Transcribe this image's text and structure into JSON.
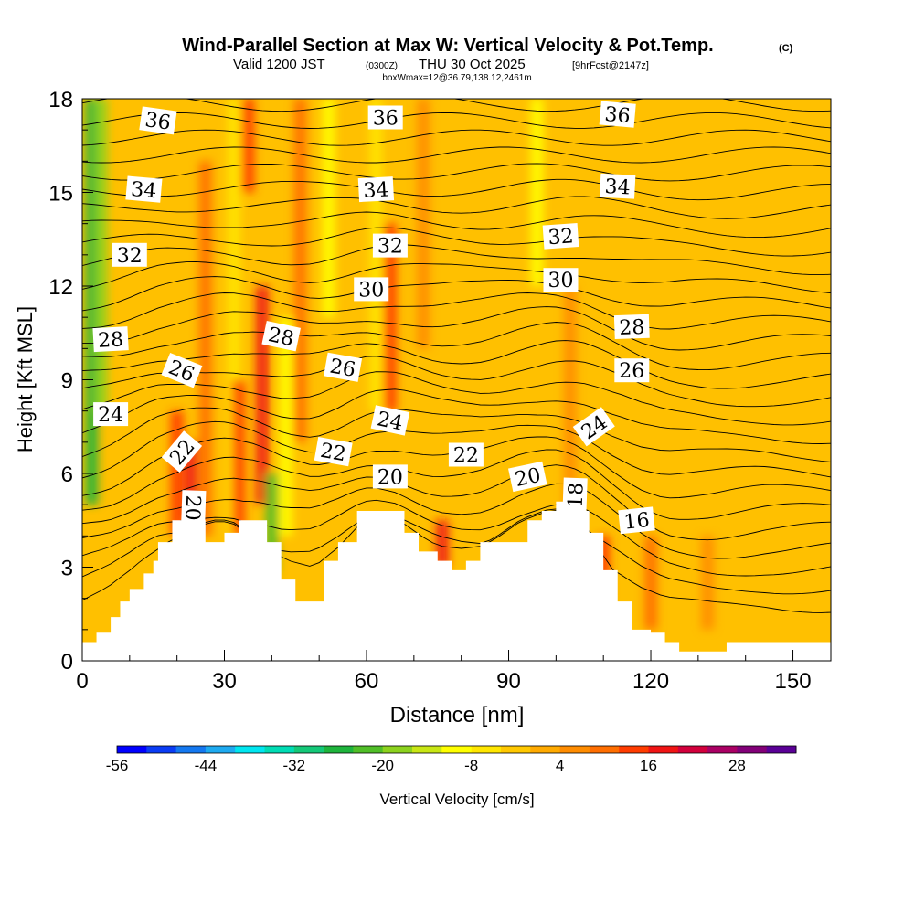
{
  "chart_data": {
    "type": "heatmap",
    "title": "Wind-Parallel Section at Max W: Vertical Velocity & Pot.Temp.",
    "title_mark": "(C)",
    "subtitle": {
      "valid_label": "Valid 1200 JST",
      "utc": "(0300Z)",
      "date": "THU 30 Oct 2025",
      "forecast": "[9hrFcst@2147z]"
    },
    "box_info": "boxWmax=12@36.79,138.12,2461m",
    "xlabel": "Distance [nm]",
    "ylabel": "Height [Kft MSL]",
    "xlim": [
      0,
      158
    ],
    "ylim": [
      0,
      18
    ],
    "x_ticks": [
      "0",
      "30",
      "60",
      "90",
      "120",
      "150"
    ],
    "y_ticks": [
      "0",
      "3",
      "6",
      "9",
      "12",
      "15",
      "18"
    ],
    "colorbar": {
      "label": "Vertical Velocity [cm/s]",
      "min": -56,
      "step": 4,
      "tick_labels": [
        "-56",
        "-44",
        "-32",
        "-20",
        "-8",
        "4",
        "16",
        "28"
      ],
      "colors": [
        "#0000ff",
        "#0a3cf5",
        "#1478f0",
        "#1eaaf0",
        "#00e6f0",
        "#00dcb4",
        "#14c878",
        "#1eb43c",
        "#50be28",
        "#8cd21e",
        "#c8e614",
        "#ffff00",
        "#ffe600",
        "#ffc800",
        "#ffaa00",
        "#ff8c00",
        "#ff6e00",
        "#ff3c00",
        "#f01414",
        "#d2003c",
        "#aa0064",
        "#820078",
        "#5a0096"
      ]
    },
    "theta_levels": [
      16,
      18,
      20,
      20,
      20,
      22,
      22,
      22,
      22,
      24,
      24,
      24,
      26,
      26,
      26,
      28,
      28,
      28,
      30,
      30,
      32,
      32,
      32,
      34,
      34,
      34,
      36,
      36,
      36
    ],
    "theta_label_points": [
      {
        "text": "36",
        "x": 16,
        "y": 17.3,
        "rot": 8
      },
      {
        "text": "36",
        "x": 64,
        "y": 17.4,
        "rot": 0
      },
      {
        "text": "36",
        "x": 113,
        "y": 17.5,
        "rot": 5
      },
      {
        "text": "34",
        "x": 13,
        "y": 15.1,
        "rot": 5
      },
      {
        "text": "34",
        "x": 62,
        "y": 15.1,
        "rot": -3
      },
      {
        "text": "34",
        "x": 113,
        "y": 15.2,
        "rot": 3
      },
      {
        "text": "32",
        "x": 10,
        "y": 13.0,
        "rot": 0
      },
      {
        "text": "32",
        "x": 65,
        "y": 13.3,
        "rot": 0
      },
      {
        "text": "32",
        "x": 101,
        "y": 13.6,
        "rot": -4
      },
      {
        "text": "30",
        "x": 61,
        "y": 11.9,
        "rot": 0
      },
      {
        "text": "30",
        "x": 101,
        "y": 12.2,
        "rot": 0
      },
      {
        "text": "28",
        "x": 6,
        "y": 10.3,
        "rot": -3
      },
      {
        "text": "28",
        "x": 42,
        "y": 10.4,
        "rot": 12
      },
      {
        "text": "28",
        "x": 116,
        "y": 10.7,
        "rot": -2
      },
      {
        "text": "26",
        "x": 21,
        "y": 9.3,
        "rot": 22
      },
      {
        "text": "26",
        "x": 55,
        "y": 9.4,
        "rot": 10
      },
      {
        "text": "26",
        "x": 116,
        "y": 9.3,
        "rot": 0
      },
      {
        "text": "24",
        "x": 6,
        "y": 7.9,
        "rot": 0
      },
      {
        "text": "24",
        "x": 65,
        "y": 7.7,
        "rot": 12
      },
      {
        "text": "24",
        "x": 108,
        "y": 7.5,
        "rot": -35
      },
      {
        "text": "22",
        "x": 21,
        "y": 6.7,
        "rot": -50
      },
      {
        "text": "22",
        "x": 53,
        "y": 6.7,
        "rot": 10
      },
      {
        "text": "22",
        "x": 81,
        "y": 6.6,
        "rot": 0
      },
      {
        "text": "20",
        "x": 65,
        "y": 5.9,
        "rot": 0
      },
      {
        "text": "20",
        "x": 94,
        "y": 5.9,
        "rot": -12
      },
      {
        "text": "20",
        "x": 23.5,
        "y": 4.9,
        "rot": 92
      },
      {
        "text": "18",
        "x": 104,
        "y": 5.3,
        "rot": -88
      },
      {
        "text": "16",
        "x": 117,
        "y": 4.5,
        "rot": -6
      }
    ],
    "terrain_top_kft": [
      [
        0,
        0.6
      ],
      [
        3,
        0.6
      ],
      [
        3,
        0.9
      ],
      [
        6,
        0.9
      ],
      [
        6,
        1.4
      ],
      [
        8,
        1.4
      ],
      [
        8,
        1.9
      ],
      [
        10,
        1.9
      ],
      [
        10,
        2.3
      ],
      [
        13,
        2.3
      ],
      [
        13,
        2.8
      ],
      [
        15,
        2.8
      ],
      [
        15,
        3.2
      ],
      [
        16,
        3.2
      ],
      [
        16,
        3.8
      ],
      [
        19,
        3.8
      ],
      [
        19,
        4.5
      ],
      [
        26,
        4.5
      ],
      [
        26,
        3.8
      ],
      [
        30,
        3.8
      ],
      [
        30,
        4.1
      ],
      [
        33,
        4.1
      ],
      [
        33,
        4.5
      ],
      [
        39,
        4.5
      ],
      [
        39,
        3.8
      ],
      [
        42,
        3.8
      ],
      [
        42,
        2.6
      ],
      [
        45,
        2.6
      ],
      [
        45,
        1.9
      ],
      [
        51,
        1.9
      ],
      [
        51,
        3.2
      ],
      [
        54,
        3.2
      ],
      [
        54,
        3.8
      ],
      [
        58,
        3.8
      ],
      [
        58,
        4.8
      ],
      [
        68,
        4.8
      ],
      [
        68,
        4.1
      ],
      [
        71,
        4.1
      ],
      [
        71,
        3.5
      ],
      [
        75,
        3.5
      ],
      [
        75,
        3.2
      ],
      [
        78,
        3.2
      ],
      [
        78,
        2.9
      ],
      [
        81,
        2.9
      ],
      [
        81,
        3.2
      ],
      [
        84,
        3.2
      ],
      [
        84,
        3.8
      ],
      [
        94,
        3.8
      ],
      [
        94,
        4.5
      ],
      [
        97,
        4.5
      ],
      [
        97,
        4.8
      ],
      [
        100,
        4.8
      ],
      [
        100,
        5.1
      ],
      [
        103,
        5.1
      ],
      [
        103,
        4.8
      ],
      [
        107,
        4.8
      ],
      [
        107,
        4.1
      ],
      [
        110,
        4.1
      ],
      [
        110,
        2.9
      ],
      [
        113,
        2.9
      ],
      [
        113,
        1.9
      ],
      [
        116,
        1.9
      ],
      [
        116,
        1.0
      ],
      [
        120,
        1.0
      ],
      [
        120,
        0.9
      ],
      [
        123,
        0.9
      ],
      [
        123,
        0.6
      ],
      [
        126,
        0.6
      ],
      [
        126,
        0.3
      ],
      [
        136,
        0.3
      ],
      [
        136,
        0.6
      ],
      [
        158,
        0.6
      ]
    ],
    "w_field": {
      "background_cm_s": -2,
      "features": [
        {
          "x": 2,
          "y_range": [
            5,
            18
          ],
          "value": -26
        },
        {
          "x": 4,
          "y_range": [
            8,
            18
          ],
          "value": -18
        },
        {
          "x": 20,
          "y_range": [
            4,
            8
          ],
          "value": 12
        },
        {
          "x": 23,
          "y_range": [
            4.5,
            7
          ],
          "value": 18
        },
        {
          "x": 26,
          "y_range": [
            4,
            16
          ],
          "value": 8
        },
        {
          "x": 32,
          "y_range": [
            4,
            18
          ],
          "value": -8
        },
        {
          "x": 33,
          "y_range": [
            4,
            9
          ],
          "value": 14
        },
        {
          "x": 35,
          "y_range": [
            15,
            18
          ],
          "value": 14
        },
        {
          "x": 38,
          "y_range": [
            5,
            12
          ],
          "value": 18
        },
        {
          "x": 40,
          "y_range": [
            2.8,
            6
          ],
          "value": -24
        },
        {
          "x": 43,
          "y_range": [
            4,
            11
          ],
          "value": -10
        },
        {
          "x": 46,
          "y_range": [
            7,
            18
          ],
          "value": 10
        },
        {
          "x": 52,
          "y_range": [
            11,
            18
          ],
          "value": -10
        },
        {
          "x": 62,
          "y_range": [
            8,
            18
          ],
          "value": -6
        },
        {
          "x": 65,
          "y_range": [
            8,
            14
          ],
          "value": 14
        },
        {
          "x": 72,
          "y_range": [
            10,
            18
          ],
          "value": 6
        },
        {
          "x": 76,
          "y_range": [
            3,
            4.5
          ],
          "value": 16
        },
        {
          "x": 96,
          "y_range": [
            12,
            18
          ],
          "value": -12
        },
        {
          "x": 103,
          "y_range": [
            4,
            12
          ],
          "value": 6
        },
        {
          "x": 110,
          "y_range": [
            2,
            4
          ],
          "value": 14
        },
        {
          "x": 120,
          "y_range": [
            1,
            4
          ],
          "value": 10
        },
        {
          "x": 132,
          "y_range": [
            1,
            4
          ],
          "value": 4
        }
      ]
    }
  }
}
